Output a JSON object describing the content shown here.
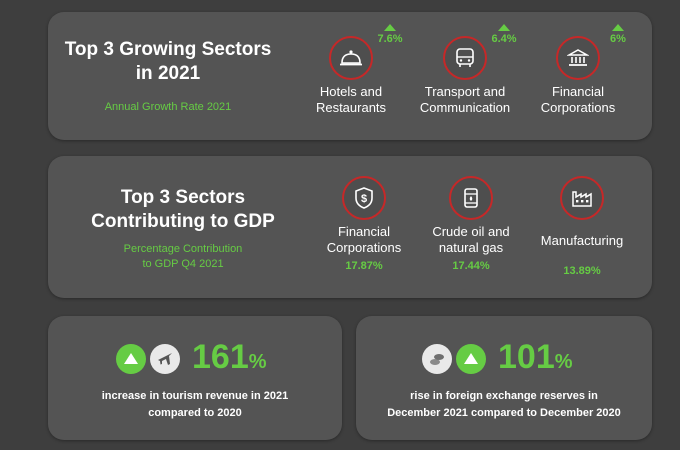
{
  "growing": {
    "title_line1": "Top 3 Growing Sectors",
    "title_line2": "in 2021",
    "subtitle": "Annual Growth Rate 2021",
    "sectors": [
      {
        "label_line1": "Hotels and",
        "label_line2": "Restaurants",
        "rate": "7.6%",
        "icon": "cloche-icon"
      },
      {
        "label_line1": "Transport and",
        "label_line2": "Communication",
        "rate": "6.4%",
        "icon": "bus-icon"
      },
      {
        "label_line1": "Financial",
        "label_line2": "Corporations",
        "rate": "6%",
        "icon": "bank-icon"
      }
    ]
  },
  "gdp": {
    "title_line1": "Top 3 Sectors",
    "title_line2": "Contributing to GDP",
    "subtitle_line1": "Percentage Contribution",
    "subtitle_line2": "to GDP Q4 2021",
    "sectors": [
      {
        "label_line1": "Financial",
        "label_line2": "Corporations",
        "share": "17.87%",
        "icon": "dollar-shield-icon"
      },
      {
        "label_line1": "Crude oil and",
        "label_line2": "natural gas",
        "share": "17.44%",
        "icon": "oil-barrel-icon"
      },
      {
        "label_line1": "Manufacturing",
        "label_line2": "",
        "share": "13.89%",
        "icon": "factory-icon"
      }
    ]
  },
  "tourism": {
    "value": "161",
    "unit": "%",
    "text_line1": "increase in tourism revenue in 2021",
    "text_line2": "compared to 2020",
    "icons": [
      "up-arrow-icon",
      "airplane-icon"
    ]
  },
  "reserves": {
    "value": "101",
    "unit": "%",
    "text_line1": "rise in foreign exchange reserves in",
    "text_line2": "December 2021 compared to December 2020",
    "icons": [
      "coins-icon",
      "up-arrow-icon"
    ]
  },
  "colors": {
    "background": "#3e3e3e",
    "card": "#545454",
    "accent_green": "#66cc44",
    "icon_ring_red": "#c62828"
  }
}
